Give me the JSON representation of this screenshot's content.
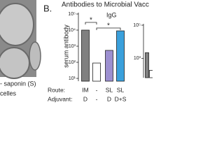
{
  "image_caption": [
    "- saponin (S)",
    "celles"
  ],
  "panel_label": "B.",
  "title": "Antibodies to Microbial Vacc",
  "chart_data": [
    {
      "type": "bar",
      "subtitle": "IgG",
      "y_label": "serum antibody",
      "log_scale": true,
      "categories": [
        "IM",
        "-",
        "SL",
        "SL"
      ],
      "row_label": "Route:",
      "adjuvant": [
        "D",
        "-",
        "D",
        "D+S"
      ],
      "adjuvant_label": "Adjuvant:",
      "values": [
        10000,
        90,
        550,
        9000
      ],
      "colors": [
        "#808080",
        "#ffffff",
        "#9c8fd0",
        "#3aa0dc"
      ],
      "ylim": [
        10,
        100000
      ],
      "yticks": [
        {
          "value": 100000,
          "label": "10⁵"
        },
        {
          "value": 10000,
          "label": "10⁴"
        },
        {
          "value": 1000,
          "label": "10³"
        },
        {
          "value": 100,
          "label": "10²"
        },
        {
          "value": 10,
          "label": "10¹"
        }
      ],
      "annotations": [
        "*",
        "*"
      ]
    },
    {
      "type": "bar",
      "log_scale": true,
      "values": [
        2200,
        190
      ],
      "colors": [
        "#808080",
        "#ffffff"
      ],
      "ylim": [
        100,
        100000
      ],
      "yticks": [
        {
          "value": 100000,
          "label": "10⁵"
        },
        {
          "value": 1000,
          "label": "10³"
        }
      ]
    }
  ]
}
